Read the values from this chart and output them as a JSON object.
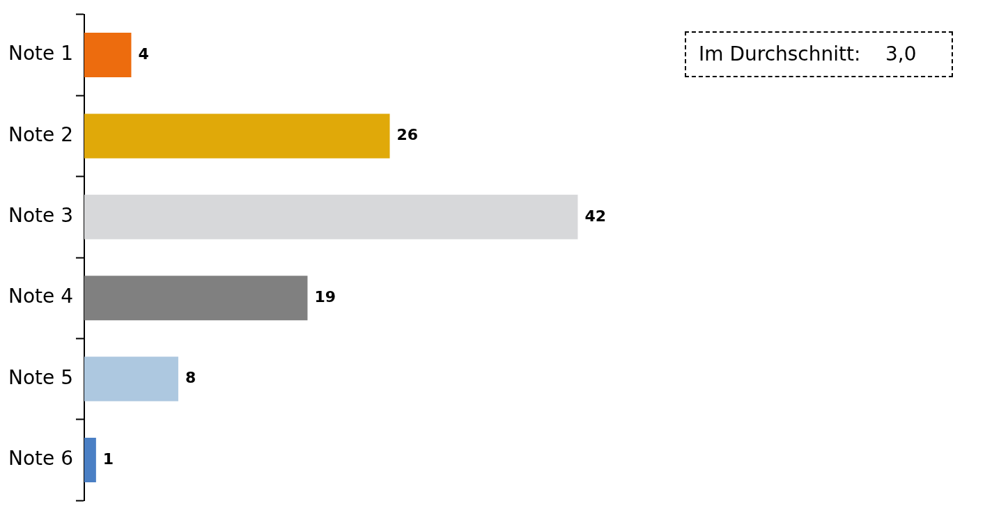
{
  "chart_data": {
    "type": "bar",
    "orientation": "horizontal",
    "categories": [
      "Note 1",
      "Note 2",
      "Note 3",
      "Note 4",
      "Note 5",
      "Note 6"
    ],
    "values": [
      4,
      26,
      42,
      19,
      8,
      1
    ],
    "colors": [
      "#ed6c0e",
      "#e0a909",
      "#d7d8da",
      "#808080",
      "#adc8e0",
      "#4a7fc4"
    ],
    "data_labels": true,
    "annotations": [
      "Im Durchschnitt:    3,0"
    ]
  }
}
